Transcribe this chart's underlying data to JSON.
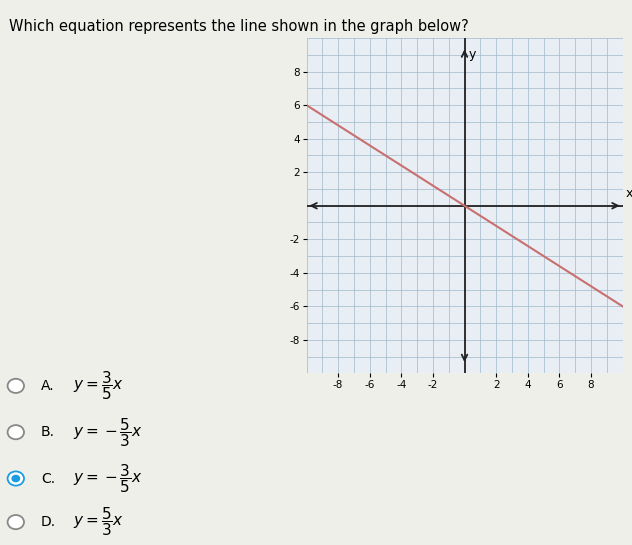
{
  "title": "Which equation represents the line shown in the graph below?",
  "title_fontsize": 10.5,
  "slope": -0.6,
  "intercept": 0,
  "x_range": [
    -10,
    10
  ],
  "y_range": [
    -9.5,
    9.5
  ],
  "x_ticks": [
    -8,
    -6,
    -4,
    -2,
    2,
    4,
    6,
    8
  ],
  "y_ticks": [
    -8,
    -6,
    -4,
    -2,
    2,
    4,
    6,
    8
  ],
  "line_color": "#c87070",
  "line_x_start": -10,
  "line_x_end": 10,
  "grid_color": "#a0b8cc",
  "grid_lw": 0.5,
  "axis_color": "#222222",
  "background_color": "#efefea",
  "graph_bg": "#e8eef4",
  "choices": [
    {
      "label": "A.",
      "text": "$y = \\dfrac{3}{5}x$",
      "selected": false
    },
    {
      "label": "B.",
      "text": "$y = -\\dfrac{5}{3}x$",
      "selected": false
    },
    {
      "label": "C.",
      "text": "$y = -\\dfrac{3}{5}x$",
      "selected": true
    },
    {
      "label": "D.",
      "text": "$y = \\dfrac{5}{3}x$",
      "selected": false
    }
  ],
  "selected_color": "#1a9de0",
  "unselected_color": "#888888",
  "choice_label_fontsize": 10,
  "choice_eq_fontsize": 11
}
